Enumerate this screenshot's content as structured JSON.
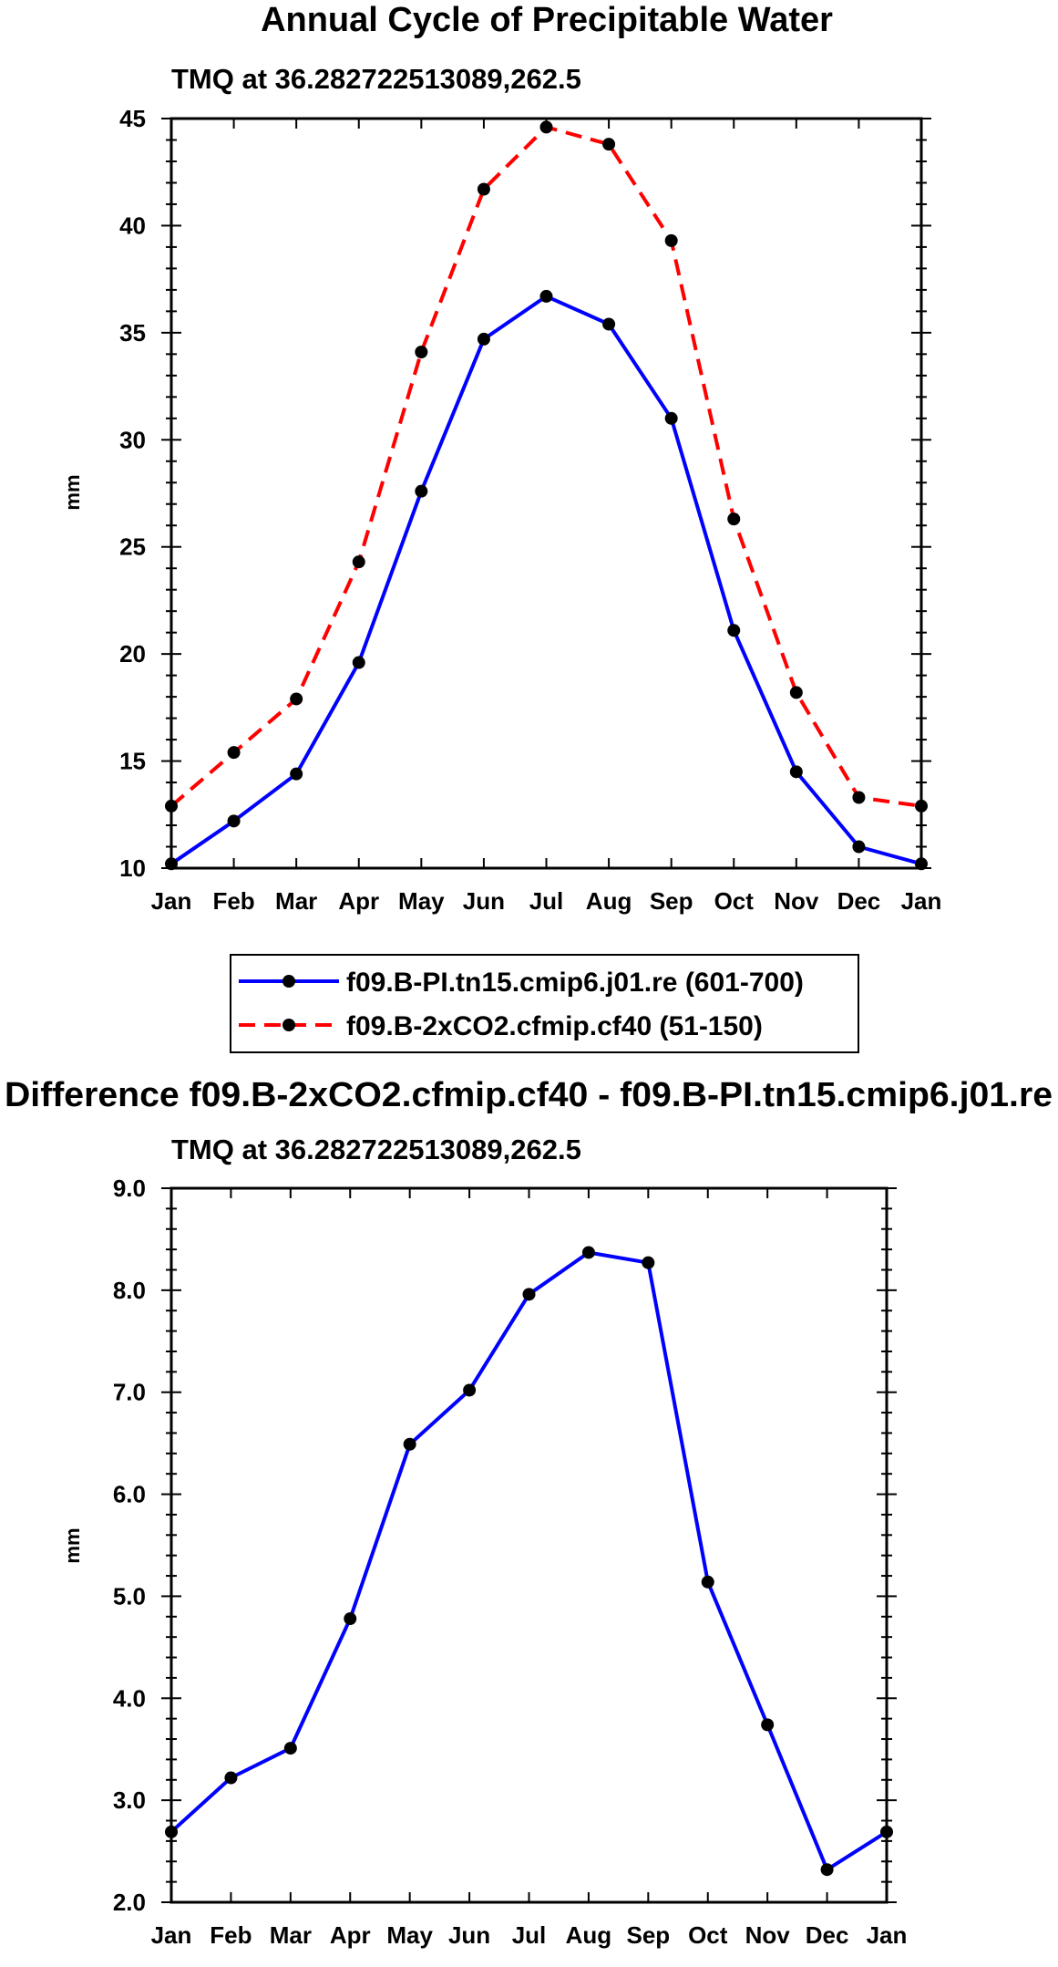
{
  "colors": {
    "background": "#ffffff",
    "axes": "#000000",
    "series_pi": "#0000ff",
    "series_2xco2": "#ff0000",
    "marker": "#000000"
  },
  "chart_data": [
    {
      "type": "line",
      "title": "Annual Cycle of Precipitable Water",
      "subtitle": "TMQ at 36.282722513089,262.5",
      "xlabel": "",
      "ylabel": "mm",
      "categories": [
        "Jan",
        "Feb",
        "Mar",
        "Apr",
        "May",
        "Jun",
        "Jul",
        "Aug",
        "Sep",
        "Oct",
        "Nov",
        "Dec",
        "Jan"
      ],
      "ylim": [
        10,
        45
      ],
      "yticks": [
        10,
        15,
        20,
        25,
        30,
        35,
        40,
        45
      ],
      "ytick_labels": [
        "10",
        "15",
        "20",
        "25",
        "30",
        "35",
        "40",
        "45"
      ],
      "grid": false,
      "legend_position": "below",
      "series": [
        {
          "name": "f09.B-PI.tn15.cmip6.j01.re (601-700)",
          "style": "solid",
          "color": "#0000ff",
          "values": [
            10.2,
            12.2,
            14.4,
            19.6,
            27.6,
            34.7,
            36.7,
            35.4,
            31.0,
            21.1,
            14.5,
            11.0,
            10.2
          ]
        },
        {
          "name": "f09.B-2xCO2.cfmip.cf40 (51-150)",
          "style": "dashed",
          "color": "#ff0000",
          "values": [
            12.9,
            15.4,
            17.9,
            24.3,
            34.1,
            41.7,
            44.6,
            43.8,
            39.3,
            26.3,
            18.2,
            13.3,
            12.9
          ]
        }
      ]
    },
    {
      "type": "line",
      "title": "Difference f09.B-2xCO2.cfmip.cf40 - f09.B-PI.tn15.cmip6.j01.re",
      "subtitle": "TMQ at 36.282722513089,262.5",
      "xlabel": "",
      "ylabel": "mm",
      "categories": [
        "Jan",
        "Feb",
        "Mar",
        "Apr",
        "May",
        "Jun",
        "Jul",
        "Aug",
        "Sep",
        "Oct",
        "Nov",
        "Dec",
        "Jan"
      ],
      "ylim": [
        2.0,
        9.0
      ],
      "yticks": [
        2,
        3,
        4,
        5,
        6,
        7,
        8,
        9
      ],
      "ytick_labels": [
        "2.0",
        "3.0",
        "4.0",
        "5.0",
        "6.0",
        "7.0",
        "8.0",
        "9.0"
      ],
      "grid": false,
      "series": [
        {
          "name": "Difference",
          "style": "solid",
          "color": "#0000ff",
          "values": [
            2.69,
            3.22,
            3.51,
            4.78,
            6.49,
            7.02,
            7.96,
            8.37,
            8.27,
            5.14,
            3.74,
            2.32,
            2.69
          ]
        }
      ]
    }
  ]
}
